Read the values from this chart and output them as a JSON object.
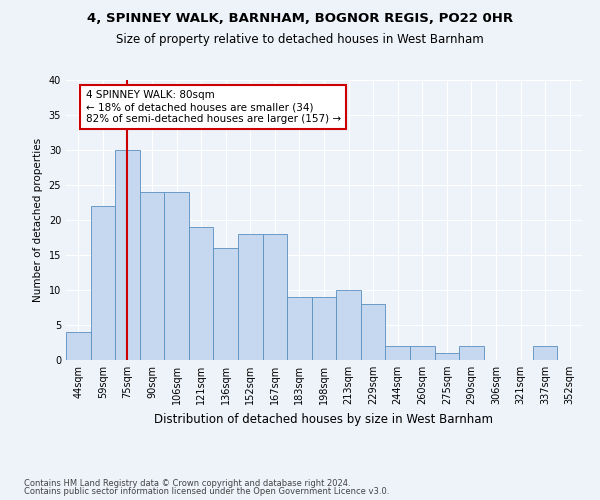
{
  "title": "4, SPINNEY WALK, BARNHAM, BOGNOR REGIS, PO22 0HR",
  "subtitle": "Size of property relative to detached houses in West Barnham",
  "xlabel": "Distribution of detached houses by size in West Barnham",
  "ylabel": "Number of detached properties",
  "categories": [
    "44sqm",
    "59sqm",
    "75sqm",
    "90sqm",
    "106sqm",
    "121sqm",
    "136sqm",
    "152sqm",
    "167sqm",
    "183sqm",
    "198sqm",
    "213sqm",
    "229sqm",
    "244sqm",
    "260sqm",
    "275sqm",
    "290sqm",
    "306sqm",
    "321sqm",
    "337sqm",
    "352sqm"
  ],
  "values": [
    4,
    22,
    30,
    24,
    24,
    19,
    16,
    18,
    18,
    9,
    9,
    10,
    8,
    2,
    2,
    1,
    2,
    0,
    0,
    2,
    0
  ],
  "bar_color": "#c5d8f0",
  "bar_edge_color": "#5a8fc0",
  "vline_x_index": 2,
  "vline_color": "#cc0000",
  "annotation_text": "4 SPINNEY WALK: 80sqm\n← 18% of detached houses are smaller (34)\n82% of semi-detached houses are larger (157) →",
  "annotation_box_edge": "#cc0000",
  "ylim": [
    0,
    40
  ],
  "yticks": [
    0,
    5,
    10,
    15,
    20,
    25,
    30,
    35,
    40
  ],
  "footer1": "Contains HM Land Registry data © Crown copyright and database right 2024.",
  "footer2": "Contains public sector information licensed under the Open Government Licence v3.0.",
  "bg_color": "#eef2f9",
  "plot_bg_color": "#eef2f9",
  "title_fontsize": 9.5,
  "subtitle_fontsize": 8.5,
  "xlabel_fontsize": 8.5,
  "ylabel_fontsize": 7.5,
  "tick_fontsize": 7.0,
  "footer_fontsize": 6.0,
  "annot_fontsize": 7.5
}
